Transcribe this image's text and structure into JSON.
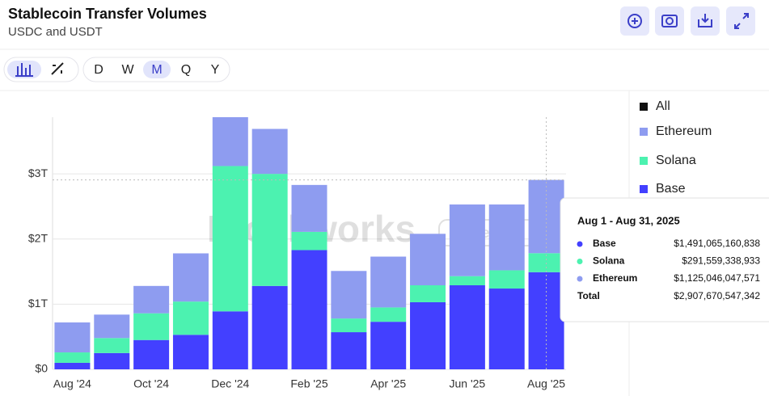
{
  "title": "Stablecoin Transfer Volumes",
  "subtitle": "USDC and USDT",
  "periods": [
    "D",
    "W",
    "M",
    "Q",
    "Y"
  ],
  "active_period": "M",
  "chart_data": {
    "type": "stacked_bar",
    "watermark": "Blockworks",
    "watermark_badge": "Research",
    "legend_all": "All",
    "categories": [
      "Aug '24",
      null,
      "Oct '24",
      null,
      "Dec '24",
      null,
      "Feb '25",
      null,
      "Apr '25",
      null,
      "Jun '25",
      null,
      "Aug '25"
    ],
    "series": [
      {
        "name": "Base",
        "color": "#4340ff",
        "values": [
          100000000000,
          250000000000,
          450000000000,
          530000000000,
          890000000000,
          1280000000000,
          1830000000000,
          570000000000,
          730000000000,
          1030000000000,
          1290000000000,
          1240000000000,
          1491065160838
        ]
      },
      {
        "name": "Solana",
        "color": "#4cf2b0",
        "values": [
          160000000000,
          230000000000,
          410000000000,
          510000000000,
          2230000000000,
          1720000000000,
          280000000000,
          210000000000,
          220000000000,
          260000000000,
          140000000000,
          280000000000,
          291559338933
        ]
      },
      {
        "name": "Ethereum",
        "color": "#8e9cf0",
        "values": [
          460000000000,
          360000000000,
          420000000000,
          740000000000,
          750000000000,
          690000000000,
          720000000000,
          730000000000,
          780000000000,
          790000000000,
          1100000000000,
          1010000000000,
          1125046047571
        ]
      }
    ],
    "ylim": [
      0,
      3870000000000
    ],
    "yticks": [
      {
        "value": 0,
        "label": "$0"
      },
      {
        "value": 1000000000000,
        "label": "$1T"
      },
      {
        "value": 2000000000000,
        "label": "$2T"
      },
      {
        "value": 3000000000000,
        "label": "$3T"
      }
    ],
    "grid": true,
    "tooltip": {
      "title": "Aug 1 - Aug 31, 2025",
      "rows": [
        {
          "name": "Base",
          "label": "$1,491,065,160,838"
        },
        {
          "name": "Solana",
          "label": "$291,559,338,933"
        },
        {
          "name": "Ethereum",
          "label": "$1,125,046,047,571"
        }
      ],
      "total_name": "Total",
      "total_label": "$2,907,670,547,342"
    }
  }
}
